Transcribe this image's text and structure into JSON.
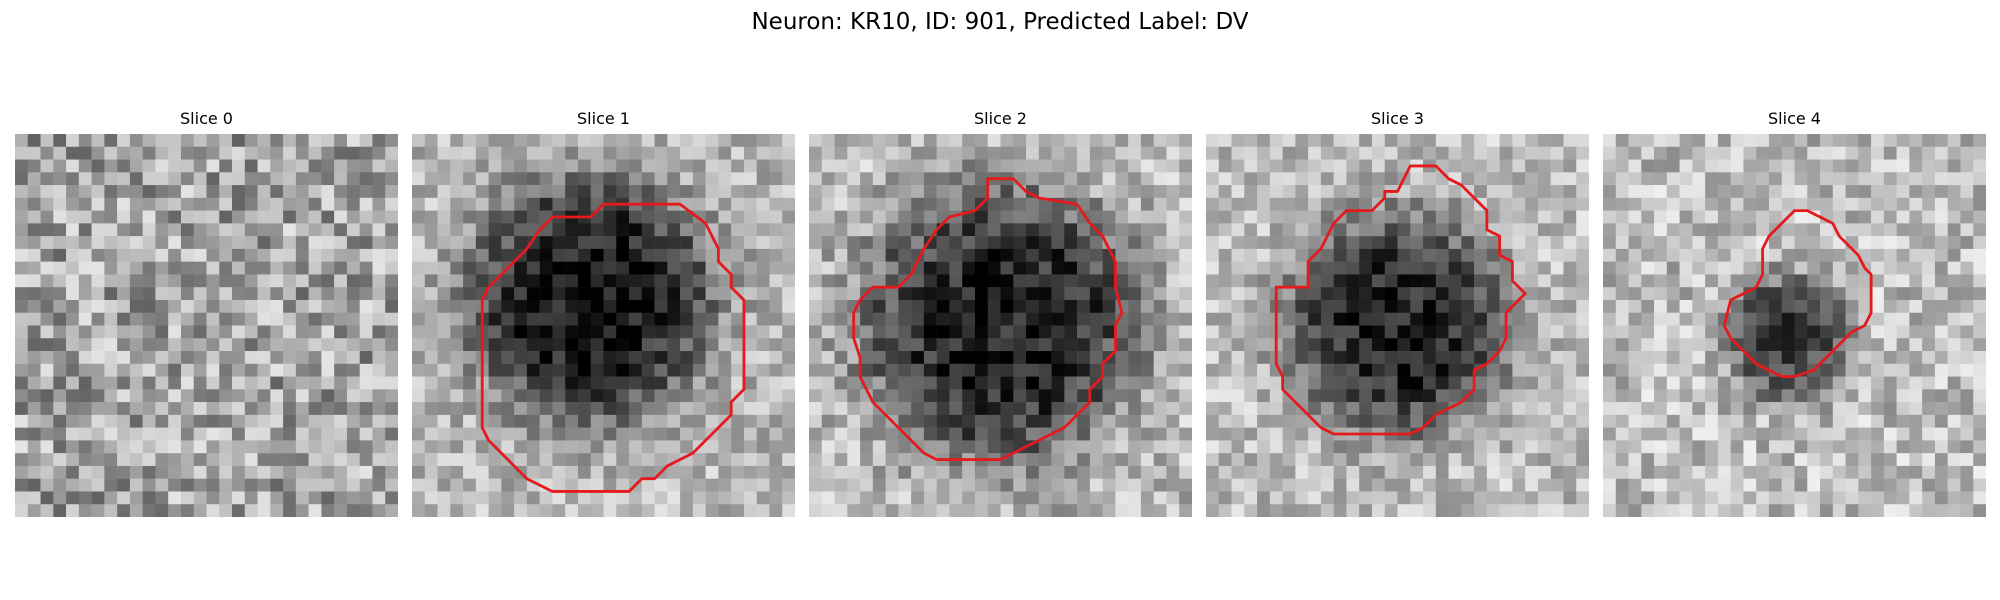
{
  "figure": {
    "title": "Neuron: KR10, ID: 901, Predicted Label: DV"
  },
  "panels": [
    {
      "title": "Slice 0",
      "has_contour": false,
      "blob": {
        "center": [
          14,
          14
        ],
        "radius": 0,
        "strength": 0
      },
      "background_level": 0.64,
      "noise": 0.26,
      "contour": []
    },
    {
      "title": "Slice 1",
      "has_contour": true,
      "blob": {
        "center": [
          14,
          13
        ],
        "radius": 10,
        "strength": 0.62
      },
      "background_level": 0.72,
      "noise": 0.18,
      "contour": [
        [
          15,
          5.5
        ],
        [
          21,
          5.5
        ],
        [
          23,
          7
        ],
        [
          24,
          9
        ],
        [
          24,
          10
        ],
        [
          25,
          11
        ],
        [
          25,
          12
        ],
        [
          26,
          13
        ],
        [
          26,
          20
        ],
        [
          25,
          21
        ],
        [
          25,
          22
        ],
        [
          24,
          23
        ],
        [
          23,
          24
        ],
        [
          22,
          25
        ],
        [
          21,
          25.5
        ],
        [
          20,
          26
        ],
        [
          19,
          27
        ],
        [
          18,
          27
        ],
        [
          17,
          28
        ],
        [
          11,
          28
        ],
        [
          10,
          27.5
        ],
        [
          9,
          27
        ],
        [
          8,
          26
        ],
        [
          7,
          25
        ],
        [
          6,
          24
        ],
        [
          5.5,
          23
        ],
        [
          5.5,
          13
        ],
        [
          6,
          12
        ],
        [
          7,
          11
        ],
        [
          8,
          10
        ],
        [
          9,
          9
        ],
        [
          10,
          7.5
        ],
        [
          11,
          6.5
        ],
        [
          14,
          6.5
        ]
      ]
    },
    {
      "title": "Slice 2",
      "has_contour": true,
      "blob": {
        "center": [
          15,
          15
        ],
        "radius": 11,
        "strength": 0.6
      },
      "background_level": 0.72,
      "noise": 0.2,
      "contour": [
        [
          14,
          3.5
        ],
        [
          16,
          3.5
        ],
        [
          17,
          4.5
        ],
        [
          18,
          5
        ],
        [
          21,
          5.5
        ],
        [
          22,
          7
        ],
        [
          23,
          8
        ],
        [
          24,
          10
        ],
        [
          24,
          12
        ],
        [
          24.5,
          14
        ],
        [
          24,
          15
        ],
        [
          24,
          17
        ],
        [
          23,
          18
        ],
        [
          23,
          19
        ],
        [
          22,
          20
        ],
        [
          22,
          21
        ],
        [
          21,
          22
        ],
        [
          20,
          23
        ],
        [
          19,
          23.5
        ],
        [
          18,
          24
        ],
        [
          17,
          24.5
        ],
        [
          16,
          25
        ],
        [
          15,
          25.5
        ],
        [
          10,
          25.5
        ],
        [
          9,
          25
        ],
        [
          8,
          24
        ],
        [
          7,
          23
        ],
        [
          6,
          22
        ],
        [
          5,
          21
        ],
        [
          4.5,
          20
        ],
        [
          4,
          19
        ],
        [
          4,
          17.5
        ],
        [
          3.5,
          16
        ],
        [
          3.5,
          14
        ],
        [
          4,
          13
        ],
        [
          5,
          12
        ],
        [
          7,
          12
        ],
        [
          8,
          11
        ],
        [
          9,
          9
        ],
        [
          10,
          7.5
        ],
        [
          11,
          6.5
        ],
        [
          13,
          6
        ],
        [
          14,
          5
        ],
        [
          14,
          4.5
        ]
      ]
    },
    {
      "title": "Slice 3",
      "has_contour": true,
      "blob": {
        "center": [
          15,
          15
        ],
        "radius": 9,
        "strength": 0.6
      },
      "background_level": 0.74,
      "noise": 0.18,
      "contour": [
        [
          16,
          2.5
        ],
        [
          18,
          2.5
        ],
        [
          19,
          3.5
        ],
        [
          20,
          4
        ],
        [
          21,
          5
        ],
        [
          22,
          6
        ],
        [
          22,
          7.5
        ],
        [
          23,
          8
        ],
        [
          23,
          9.5
        ],
        [
          24,
          10
        ],
        [
          24,
          11.5
        ],
        [
          25,
          12.5
        ],
        [
          24,
          13.5
        ],
        [
          23.5,
          14
        ],
        [
          23.5,
          16
        ],
        [
          23,
          17
        ],
        [
          22,
          18
        ],
        [
          21,
          18.5
        ],
        [
          21,
          20
        ],
        [
          20,
          21
        ],
        [
          19,
          21.5
        ],
        [
          18,
          22
        ],
        [
          17,
          23
        ],
        [
          16,
          23.5
        ],
        [
          10,
          23.5
        ],
        [
          9,
          23
        ],
        [
          8,
          22
        ],
        [
          7,
          21
        ],
        [
          6,
          20
        ],
        [
          6,
          19
        ],
        [
          5.5,
          18
        ],
        [
          5.5,
          12
        ],
        [
          8,
          12
        ],
        [
          8,
          10
        ],
        [
          9,
          9
        ],
        [
          10,
          7
        ],
        [
          11,
          6
        ],
        [
          13,
          6
        ],
        [
          14,
          5
        ],
        [
          14,
          4.5
        ],
        [
          15,
          4.5
        ],
        [
          15.5,
          3.5
        ]
      ]
    },
    {
      "title": "Slice 4",
      "has_contour": true,
      "blob": {
        "center": [
          14.5,
          16
        ],
        "radius": 5,
        "strength": 0.5
      },
      "background_level": 0.74,
      "noise": 0.2,
      "contour": [
        [
          15,
          6
        ],
        [
          16,
          6
        ],
        [
          17,
          6.5
        ],
        [
          18,
          7
        ],
        [
          18.5,
          8
        ],
        [
          19,
          8.5
        ],
        [
          20,
          9.5
        ],
        [
          20.5,
          10.5
        ],
        [
          21,
          11
        ],
        [
          21,
          14
        ],
        [
          20.5,
          15
        ],
        [
          19.5,
          15.5
        ],
        [
          19,
          16
        ],
        [
          18,
          17
        ],
        [
          17,
          18
        ],
        [
          16.5,
          18.5
        ],
        [
          15,
          19
        ],
        [
          14,
          19
        ],
        [
          13,
          18.5
        ],
        [
          12,
          18
        ],
        [
          11,
          17
        ],
        [
          10,
          16
        ],
        [
          9.5,
          15
        ],
        [
          10,
          13
        ],
        [
          11,
          12.5
        ],
        [
          12,
          12
        ],
        [
          12.5,
          11
        ],
        [
          12.5,
          9
        ],
        [
          13,
          8
        ],
        [
          14,
          7
        ]
      ]
    }
  ],
  "colors": {
    "contour": "#e41a1c",
    "background": "#ffffff"
  }
}
